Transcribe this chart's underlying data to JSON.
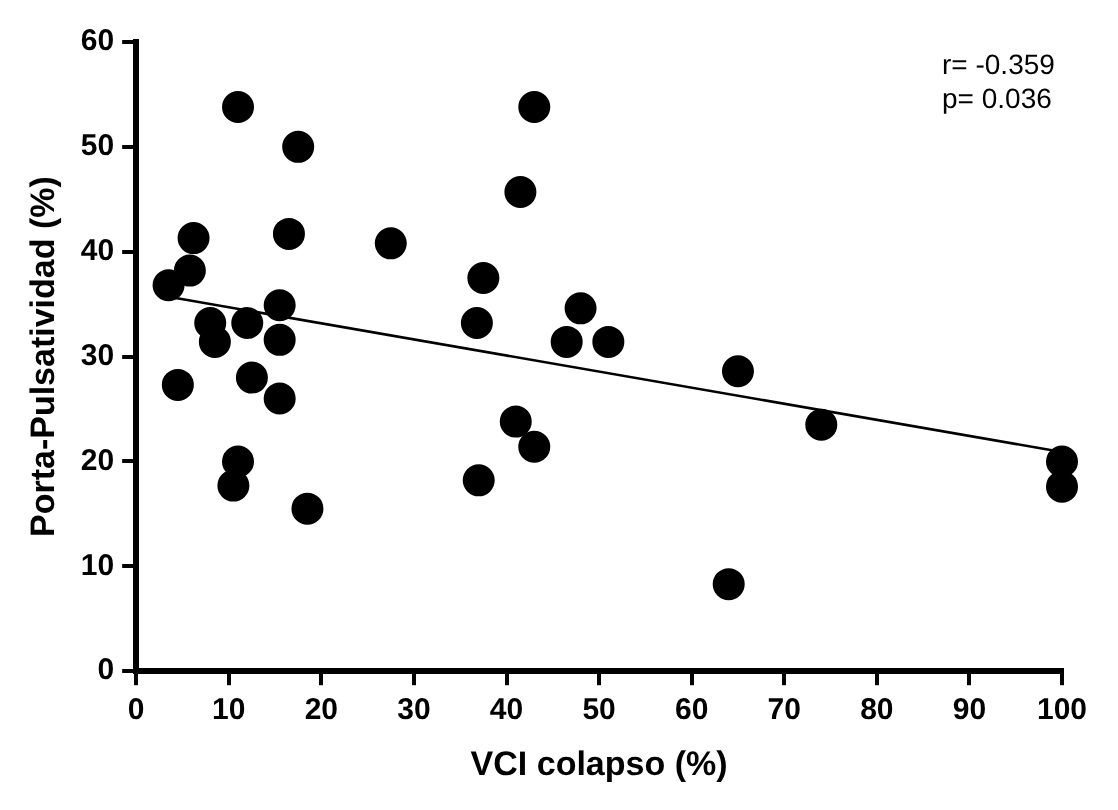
{
  "chart_data": {
    "type": "scatter",
    "xlabel": "VCI colapso (%)",
    "ylabel": "Porta-Pulsatividad (%)",
    "annotations": [
      "r= -0.359",
      "p= 0.036"
    ],
    "xlim": [
      0,
      100
    ],
    "xticks": [
      0,
      10,
      20,
      30,
      40,
      50,
      60,
      70,
      80,
      90,
      100
    ],
    "ylim": [
      0,
      60
    ],
    "yticks": [
      0,
      10,
      20,
      30,
      40,
      50,
      60
    ],
    "grid": false,
    "legend": false,
    "marker": "circle",
    "series": [
      {
        "type": "scatter",
        "color": "#000000",
        "x": [
          3.5,
          4.5,
          5.8,
          6.2,
          8,
          8.5,
          11,
          10.5,
          11,
          12,
          12.5,
          15.5,
          15.5,
          15.5,
          16.5,
          17.5,
          18.5,
          27.5,
          36.8,
          37,
          37.5,
          41,
          41.5,
          43,
          43,
          46.5,
          48,
          51,
          64,
          65,
          74,
          100,
          100
        ],
        "values": [
          36.8,
          27.3,
          38.2,
          41.3,
          33.2,
          31.4,
          53.8,
          17.7,
          20,
          33.2,
          28,
          34.9,
          31.6,
          26,
          41.7,
          50,
          15.5,
          40.8,
          33.2,
          18.2,
          37.5,
          23.8,
          45.7,
          53.8,
          21.4,
          31.4,
          34.6,
          31.4,
          8.3,
          28.6,
          23.5,
          20,
          17.6
        ]
      },
      {
        "type": "line",
        "color": "#000000",
        "x": [
          3.5,
          100
        ],
        "values": [
          35.7,
          20.9
        ],
        "marker": "none",
        "line_style": "solid"
      }
    ]
  }
}
